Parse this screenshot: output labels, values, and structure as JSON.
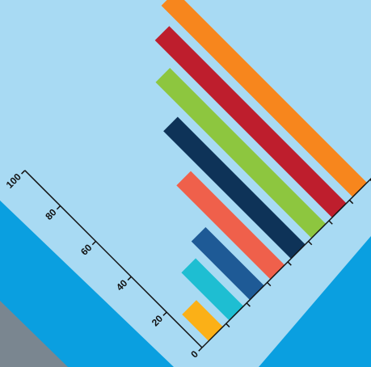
{
  "chart_data": {
    "type": "bar",
    "values": [
      15,
      27,
      33,
      53,
      72,
      88,
      100,
      108
    ],
    "colors": [
      "#fbb017",
      "#1ebed2",
      "#1e5a96",
      "#ef604b",
      "#0e3358",
      "#8dc63f",
      "#be1e2d",
      "#f7861d"
    ],
    "ylim": [
      0,
      100
    ],
    "yticks": [
      0,
      20,
      40,
      60,
      80,
      100
    ],
    "grid": false
  }
}
